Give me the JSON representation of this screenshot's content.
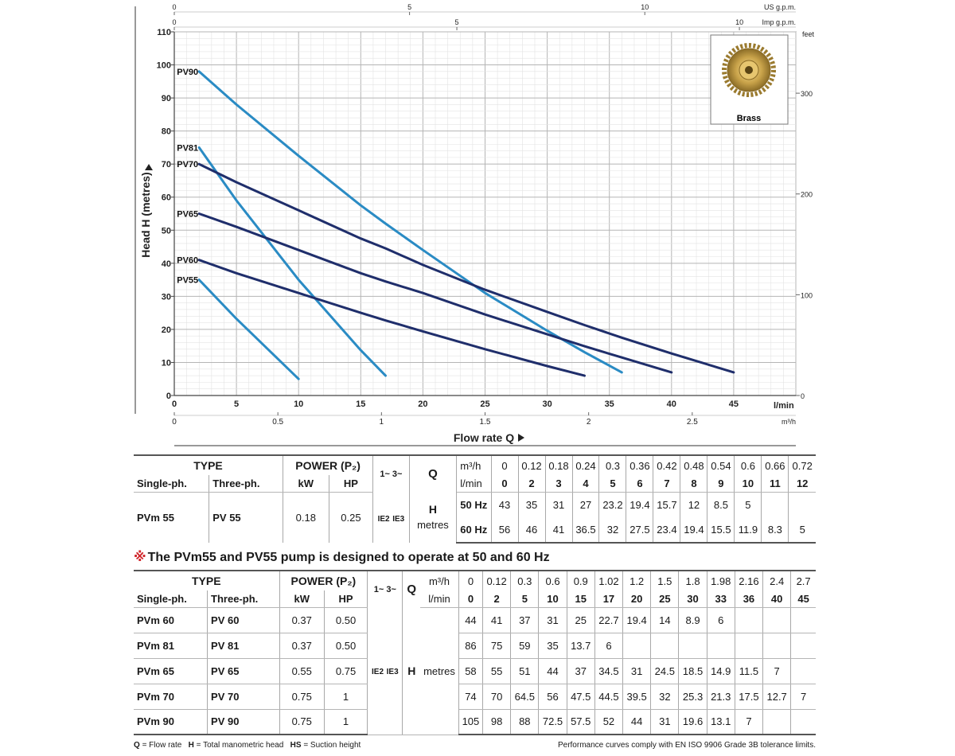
{
  "chart_data": {
    "type": "line",
    "ylabel": "Head H (metres)",
    "xlabel": "Flow rate Q",
    "x_unit": "l/min",
    "xlim": [
      0,
      50
    ],
    "ylim": [
      0,
      110
    ],
    "x_ticks": [
      0,
      5,
      10,
      15,
      20,
      25,
      30,
      35,
      40,
      45
    ],
    "y_ticks": [
      0,
      10,
      20,
      30,
      40,
      50,
      60,
      70,
      80,
      90,
      100,
      110
    ],
    "m3h_ticks": [
      "0",
      "0.5",
      "1",
      "1.5",
      "2",
      "2.5"
    ],
    "m3h_unit": "m³/h",
    "usgpm_ticks": [
      "0",
      "5",
      "10"
    ],
    "usgpm_unit": "US g.p.m.",
    "impgpm_ticks": [
      "0",
      "5",
      "10"
    ],
    "impgpm_unit": "Imp g.p.m.",
    "feet_ticks": [
      "0",
      "100",
      "200",
      "300"
    ],
    "feet_unit": "feet",
    "impeller_label": "Brass",
    "series": [
      {
        "name": "PV90",
        "color": "#2a8bc4",
        "x": [
          2,
          5,
          10,
          15,
          17,
          20,
          25,
          30,
          33,
          36
        ],
        "y": [
          98,
          88,
          72.5,
          57.5,
          52,
          44,
          31,
          19.6,
          13.1,
          7
        ]
      },
      {
        "name": "PV81",
        "color": "#2a8bc4",
        "x": [
          2,
          5,
          10,
          15,
          17
        ],
        "y": [
          75,
          59,
          35,
          13.7,
          6
        ]
      },
      {
        "name": "PV70",
        "color": "#1f2e6b",
        "x": [
          2,
          5,
          10,
          15,
          17,
          20,
          25,
          30,
          33,
          36,
          40,
          45
        ],
        "y": [
          70,
          64.5,
          56,
          47.5,
          44.5,
          39.5,
          32,
          25.3,
          21.3,
          17.5,
          12.7,
          7
        ]
      },
      {
        "name": "PV65",
        "color": "#1f2e6b",
        "x": [
          2,
          5,
          10,
          15,
          17,
          20,
          25,
          30,
          33,
          36,
          40
        ],
        "y": [
          55,
          51,
          44,
          37,
          34.5,
          31,
          24.5,
          18.5,
          14.9,
          11.5,
          7
        ]
      },
      {
        "name": "PV60",
        "color": "#1f2e6b",
        "x": [
          2,
          5,
          10,
          15,
          17,
          20,
          25,
          30,
          33
        ],
        "y": [
          41,
          37,
          31,
          25,
          22.7,
          19.4,
          14,
          8.9,
          6
        ]
      },
      {
        "name": "PV55",
        "color": "#2a8bc4",
        "x": [
          2,
          5,
          10
        ],
        "y": [
          35,
          23.2,
          5
        ]
      }
    ]
  },
  "table1": {
    "type_label": "TYPE",
    "single_label": "Single-ph.",
    "three_label": "Three-ph.",
    "power_label": "POWER (P₂)",
    "kw_label": "kW",
    "hp_label": "HP",
    "phase_label": "1~ 3~",
    "q_label": "Q",
    "m3h_label": "m³/h",
    "lmin_label": "l/min",
    "m3h_values": [
      "0",
      "0.12",
      "0.18",
      "0.24",
      "0.3",
      "0.36",
      "0.42",
      "0.48",
      "0.54",
      "0.6",
      "0.66",
      "0.72"
    ],
    "lmin_values": [
      "0",
      "2",
      "3",
      "4",
      "5",
      "6",
      "7",
      "8",
      "9",
      "10",
      "11",
      "12"
    ],
    "single": "PVm 55",
    "three": "PV 55",
    "kw": "0.18",
    "hp": "0.25",
    "ie_single": "IE2",
    "ie_three": "IE3",
    "h_label": "H",
    "metres_label": "metres",
    "hz50_label": "50 Hz",
    "hz60_label": "60 Hz",
    "h50": [
      "43",
      "35",
      "31",
      "27",
      "23.2",
      "19.4",
      "15.7",
      "12",
      "8.5",
      "5",
      "",
      ""
    ],
    "h60": [
      "56",
      "46",
      "41",
      "36.5",
      "32",
      "27.5",
      "23.4",
      "19.4",
      "15.5",
      "11.9",
      "8.3",
      "5"
    ]
  },
  "note": {
    "mark": "※",
    "text": "The PVm55 and PV55 pump is designed to operate at 50 and 60 Hz"
  },
  "table2": {
    "type_label": "TYPE",
    "single_label": "Single-ph.",
    "three_label": "Three-ph.",
    "power_label": "POWER (P₂)",
    "kw_label": "kW",
    "hp_label": "HP",
    "phase_label": "1~ 3~",
    "q_label": "Q",
    "m3h_label": "m³/h",
    "lmin_label": "l/min",
    "m3h_values": [
      "0",
      "0.12",
      "0.3",
      "0.6",
      "0.9",
      "1.02",
      "1.2",
      "1.5",
      "1.8",
      "1.98",
      "2.16",
      "2.4",
      "2.7"
    ],
    "lmin_values": [
      "0",
      "2",
      "5",
      "10",
      "15",
      "17",
      "20",
      "25",
      "30",
      "33",
      "36",
      "40",
      "45"
    ],
    "ie_single": "IE2",
    "ie_three": "IE3",
    "h_label": "H",
    "metres_label": "metres",
    "rows": [
      {
        "single": "PVm 60",
        "three": "PV 60",
        "kw": "0.37",
        "hp": "0.50",
        "h": [
          "44",
          "41",
          "37",
          "31",
          "25",
          "22.7",
          "19.4",
          "14",
          "8.9",
          "6",
          "",
          "",
          ""
        ]
      },
      {
        "single": "PVm 81",
        "three": "PV 81",
        "kw": "0.37",
        "hp": "0.50",
        "h": [
          "86",
          "75",
          "59",
          "35",
          "13.7",
          "6",
          "",
          "",
          "",
          "",
          "",
          "",
          ""
        ]
      },
      {
        "single": "PVm 65",
        "three": "PV 65",
        "kw": "0.55",
        "hp": "0.75",
        "h": [
          "58",
          "55",
          "51",
          "44",
          "37",
          "34.5",
          "31",
          "24.5",
          "18.5",
          "14.9",
          "11.5",
          "7",
          ""
        ]
      },
      {
        "single": "PVm 70",
        "three": "PV 70",
        "kw": "0.75",
        "hp": "1",
        "h": [
          "74",
          "70",
          "64.5",
          "56",
          "47.5",
          "44.5",
          "39.5",
          "32",
          "25.3",
          "21.3",
          "17.5",
          "12.7",
          "7"
        ]
      },
      {
        "single": "PVm 90",
        "three": "PV 90",
        "kw": "0.75",
        "hp": "1",
        "h": [
          "105",
          "98",
          "88",
          "72.5",
          "57.5",
          "52",
          "44",
          "31",
          "19.6",
          "13.1",
          "7",
          "",
          ""
        ]
      }
    ]
  },
  "footer": {
    "legend_q_key": "Q",
    "legend_q_text": "= Flow rate",
    "legend_h_key": "H",
    "legend_h_text": "= Total manometric head",
    "legend_hs_key": "HS",
    "legend_hs_text": "= Suction height",
    "compliance": "Performance curves comply with EN ISO 9906 Grade 3B tolerance limits."
  }
}
